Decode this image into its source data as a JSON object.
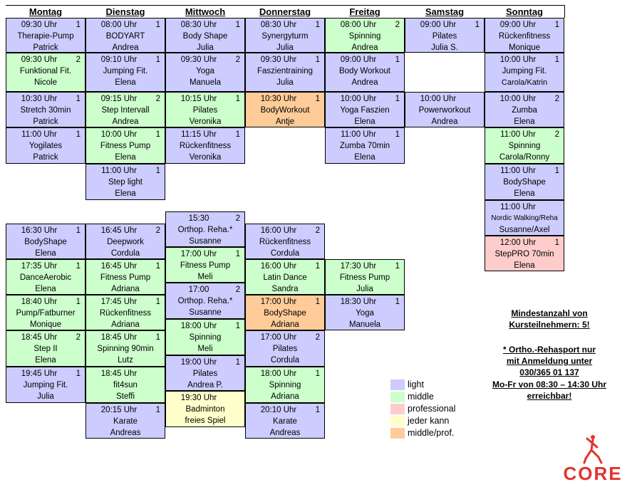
{
  "days": [
    "Montag",
    "Dienstag",
    "Mittwoch",
    "Donnerstag",
    "Freitag",
    "Samstag",
    "Sonntag"
  ],
  "cells": {
    "mo1": {
      "time": "09:30 Uhr",
      "num": "1",
      "course": "Therapie-Pump",
      "instructor": "Patrick",
      "level": "light"
    },
    "mo2": {
      "time": "09:30 Uhr",
      "num": "2",
      "course": "Funktional Fit.",
      "instructor": "Nicole",
      "level": "middle"
    },
    "mo3": {
      "time": "10:30 Uhr",
      "num": "1",
      "course": "Stretch 30min",
      "instructor": "Patrick",
      "level": "light"
    },
    "mo4": {
      "time": "11:00 Uhr",
      "num": "1",
      "course": "Yogilates",
      "instructor": "Patrick",
      "level": "light"
    },
    "mo5": {
      "time": "16:30 Uhr",
      "num": "1",
      "course": "BodyShape",
      "instructor": "Elena",
      "level": "light"
    },
    "mo6": {
      "time": "17:35 Uhr",
      "num": "1",
      "course": "DanceAerobic",
      "instructor": "Elena",
      "level": "middle"
    },
    "mo7": {
      "time": "18:40 Uhr",
      "num": "1",
      "course": "Pump/Fatburner",
      "instructor": "Monique",
      "level": "middle"
    },
    "mo8": {
      "time": "18:45 Uhr",
      "num": "2",
      "course": "Step II",
      "instructor": "Elena",
      "level": "middle"
    },
    "mo9": {
      "time": "19:45 Uhr",
      "num": "1",
      "course": "Jumping Fit.",
      "instructor": "Julia",
      "level": "light"
    },
    "di1": {
      "time": "08:00 Uhr",
      "num": "1",
      "course": "BODYART",
      "instructor": "Andrea",
      "level": "light"
    },
    "di2": {
      "time": "09:10 Uhr",
      "num": "1",
      "course": "Jumping Fit.",
      "instructor": "Elena",
      "level": "light"
    },
    "di3": {
      "time": "09:15 Uhr",
      "num": "2",
      "course": "Step Intervall",
      "instructor": "Andrea",
      "level": "middle"
    },
    "di4": {
      "time": "10:00 Uhr",
      "num": "1",
      "course": "Fitness Pump",
      "instructor": "Elena",
      "level": "middle"
    },
    "di5": {
      "time": "11:00 Uhr",
      "num": "1",
      "course": "Step light",
      "instructor": "Elena",
      "level": "light"
    },
    "di6": {
      "time": "16:45 Uhr",
      "num": "2",
      "course": "Deepwork",
      "instructor": "Cordula",
      "level": "light"
    },
    "di7": {
      "time": "16:45 Uhr",
      "num": "1",
      "course": "Fitness Pump",
      "instructor": "Adriana",
      "level": "middle"
    },
    "di8": {
      "time": "17:45 Uhr",
      "num": "1",
      "course": "Rückenfitness",
      "instructor": "Adriana",
      "level": "middle"
    },
    "di9": {
      "time": "18:45 Uhr",
      "num": "1",
      "course": "Spinning 90min",
      "instructor": "Lutz",
      "level": "middle"
    },
    "di10": {
      "time": "18:45 Uhr",
      "num": "",
      "course": "fit4sun",
      "instructor": "Steffi",
      "level": "middle"
    },
    "di11": {
      "time": "20:15 Uhr",
      "num": "1",
      "course": "Karate",
      "instructor": "Andreas",
      "level": "light"
    },
    "mi1": {
      "time": "08:30 Uhr",
      "num": "1",
      "course": "Body Shape",
      "instructor": "Julia",
      "level": "light"
    },
    "mi2": {
      "time": "09:30 Uhr",
      "num": "2",
      "course": "Yoga",
      "instructor": "Manuela",
      "level": "light"
    },
    "mi3": {
      "time": "10:15 Uhr",
      "num": "1",
      "course": "Pilates",
      "instructor": "Veronika",
      "level": "middle"
    },
    "mi4": {
      "time": "11:15 Uhr",
      "num": "1",
      "course": "Rückenfitness",
      "instructor": "Veronika",
      "level": "light"
    },
    "mi5": {
      "time": "15:30",
      "num": "2",
      "course": "Orthop. Reha.*",
      "instructor": "Susanne",
      "level": "light"
    },
    "mi6": {
      "time": "17:00 Uhr",
      "num": "1",
      "course": "Fitness Pump",
      "instructor": "Meli",
      "level": "middle"
    },
    "mi7": {
      "time": "17:00",
      "num": "2",
      "course": "Orthop. Reha.*",
      "instructor": "Susanne",
      "level": "light"
    },
    "mi8": {
      "time": "18:00 Uhr",
      "num": "1",
      "course": "Spinning",
      "instructor": "Meli",
      "level": "middle"
    },
    "mi9": {
      "time": "19:00 Uhr",
      "num": "1",
      "course": "Pilates",
      "instructor": "Andrea P.",
      "level": "light"
    },
    "mi10": {
      "time": "19:30 Uhr",
      "num": "",
      "course": "Badminton",
      "instructor": "freies Spiel",
      "level": "jeder"
    },
    "do1": {
      "time": "08:30 Uhr",
      "num": "1",
      "course": "Synergyturm",
      "instructor": "Julia",
      "level": "light"
    },
    "do2": {
      "time": "09:30 Uhr",
      "num": "1",
      "course": "Faszientraining",
      "instructor": "Julia",
      "level": "light"
    },
    "do3": {
      "time": "10:30 Uhr",
      "num": "1",
      "course": "BodyWorkout",
      "instructor": "Antje",
      "level": "mp"
    },
    "do4": {
      "time": "16:00 Uhr",
      "num": "2",
      "course": "Rückenfitness",
      "instructor": "Cordula",
      "level": "light"
    },
    "do5": {
      "time": "16:00 Uhr",
      "num": "1",
      "course": "Latin Dance",
      "instructor": "Sandra",
      "level": "middle"
    },
    "do6": {
      "time": "17:00 Uhr",
      "num": "1",
      "course": "BodyShape",
      "instructor": "Adriana",
      "level": "mp"
    },
    "do7": {
      "time": "17:00 Uhr",
      "num": "2",
      "course": "Pilates",
      "instructor": "Cordula",
      "level": "light"
    },
    "do8": {
      "time": "18:00 Uhr",
      "num": "1",
      "course": "Spinning",
      "instructor": "Adriana",
      "level": "middle"
    },
    "do9": {
      "time": "20:10 Uhr",
      "num": "1",
      "course": "Karate",
      "instructor": "Andreas",
      "level": "light"
    },
    "fr1": {
      "time": "08:00 Uhr",
      "num": "2",
      "course": "Spinning",
      "instructor": "Andrea",
      "level": "middle"
    },
    "fr2": {
      "time": "09:00 Uhr",
      "num": "1",
      "course": "Body Workout",
      "instructor": "Andrea",
      "level": "light"
    },
    "fr3": {
      "time": "10:00 Uhr",
      "num": "1",
      "course": "Yoga Faszien",
      "instructor": "Elena",
      "level": "light"
    },
    "fr4": {
      "time": "11:00 Uhr",
      "num": "1",
      "course": "Zumba 70min",
      "instructor": "Elena",
      "level": "light"
    },
    "fr5": {
      "time": "17:30 Uhr",
      "num": "1",
      "course": "Fitness Pump",
      "instructor": "Julia",
      "level": "middle"
    },
    "fr6": {
      "time": "18:30 Uhr",
      "num": "1",
      "course": "Yoga",
      "instructor": "Manuela",
      "level": "light"
    },
    "sa1": {
      "time": "09:00 Uhr",
      "num": "1",
      "course": "Pilates",
      "instructor": "Julia S.",
      "level": "light"
    },
    "sa2": {
      "time": "10:00 Uhr",
      "num": "",
      "course": "Powerworkout",
      "instructor": "Andrea",
      "level": "light"
    },
    "so1": {
      "time": "09:00 Uhr",
      "num": "1",
      "course": "Rückenfitness",
      "instructor": "Monique",
      "level": "light"
    },
    "so2": {
      "time": "10:00 Uhr",
      "num": "1",
      "course": "Jumping Fit.",
      "instructor": "Carola/Katrin",
      "level": "light"
    },
    "so3": {
      "time": "10:00 Uhr",
      "num": "2",
      "course": "Zumba",
      "instructor": "Elena",
      "level": "light"
    },
    "so4": {
      "time": "11:00 Uhr",
      "num": "2",
      "course": "Spinning",
      "instructor": "Carola/Ronny",
      "level": "middle"
    },
    "so5": {
      "time": "11:00 Uhr",
      "num": "1",
      "course": "BodyShape",
      "instructor": "Elena",
      "level": "light"
    },
    "so6": {
      "time": "11:00 Uhr",
      "num": "",
      "course": "Nordic Walking/Reha",
      "instructor": "Susanne/Axel",
      "level": "light"
    },
    "so7": {
      "time": "12:00 Uhr",
      "num": "1",
      "course": "StepPRO 70min",
      "instructor": "Elena",
      "level": "prof"
    }
  },
  "legend": [
    {
      "label": "light",
      "color": "#ccccff"
    },
    {
      "label": "middle",
      "color": "#ccffcc"
    },
    {
      "label": "professional",
      "color": "#ffcccc"
    },
    {
      "label": "jeder kann",
      "color": "#ffffcc"
    },
    {
      "label": "middle/prof.",
      "color": "#ffcc99"
    }
  ],
  "info": {
    "line1": "Mindestanzahl von",
    "line2": "Kursteilnehmern: 5!",
    "line3": "* Ortho.-Rehasport nur",
    "line4": "mit Anmeldung unter",
    "line5": "030/365 01 137",
    "line6": "Mo-Fr von 08:30 – 14:30 Uhr",
    "line7": "erreichbar!"
  },
  "logo_text": "CORE",
  "logo_icon": "yoga-figure-icon"
}
